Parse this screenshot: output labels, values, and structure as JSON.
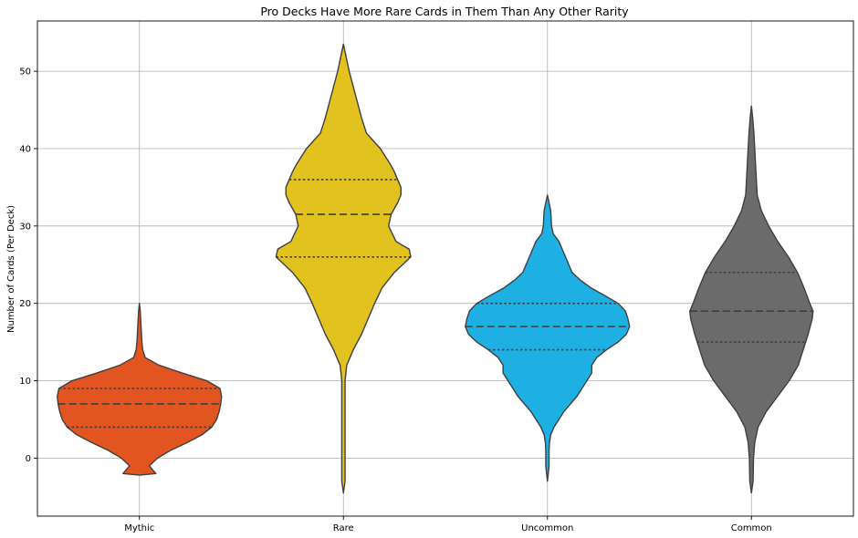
{
  "chart_data": {
    "type": "violin",
    "title": "Pro Decks Have More Rare Cards in Them Than Any Other Rarity",
    "xlabel": "",
    "ylabel": "Number of Cards (Per Deck)",
    "ylim": [
      -7.5,
      56.5
    ],
    "yticks": [
      0,
      10,
      20,
      30,
      40,
      50
    ],
    "grid": true,
    "categories": [
      "Mythic",
      "Rare",
      "Uncommon",
      "Common"
    ],
    "colors": [
      "#e35520",
      "#e2c21f",
      "#1fb0e3",
      "#6b6b6b"
    ],
    "quartiles": [
      {
        "q1": 4,
        "median": 7,
        "q3": 9
      },
      {
        "q1": 26,
        "median": 31.5,
        "q3": 36
      },
      {
        "q1": 14,
        "median": 17,
        "q3": 20
      },
      {
        "q1": 15,
        "median": 19,
        "q3": 24
      }
    ],
    "density_profiles": [
      [
        [
          -2.2,
          0
        ],
        [
          -2,
          0.2
        ],
        [
          -1,
          0.12
        ],
        [
          0,
          0.22
        ],
        [
          1,
          0.38
        ],
        [
          2,
          0.58
        ],
        [
          3,
          0.76
        ],
        [
          4,
          0.88
        ],
        [
          5,
          0.94
        ],
        [
          6,
          0.97
        ],
        [
          7,
          0.99
        ],
        [
          8,
          1
        ],
        [
          9,
          0.98
        ],
        [
          10,
          0.82
        ],
        [
          11,
          0.52
        ],
        [
          12,
          0.24
        ],
        [
          13,
          0.07
        ],
        [
          14,
          0.04
        ],
        [
          15,
          0.03
        ],
        [
          16,
          0.025
        ],
        [
          17,
          0.02
        ],
        [
          18,
          0.015
        ],
        [
          19,
          0.01
        ],
        [
          20,
          0
        ]
      ],
      [
        [
          -4.5,
          0
        ],
        [
          -3,
          0.02
        ],
        [
          0,
          0.02
        ],
        [
          6,
          0.02
        ],
        [
          10,
          0.02
        ],
        [
          12,
          0.04
        ],
        [
          14,
          0.12
        ],
        [
          16,
          0.22
        ],
        [
          18,
          0.3
        ],
        [
          20,
          0.38
        ],
        [
          22,
          0.47
        ],
        [
          24,
          0.62
        ],
        [
          26,
          0.82
        ],
        [
          27,
          0.8
        ],
        [
          28,
          0.64
        ],
        [
          30,
          0.55
        ],
        [
          31.5,
          0.58
        ],
        [
          33,
          0.66
        ],
        [
          34,
          0.7
        ],
        [
          35,
          0.7
        ],
        [
          36,
          0.66
        ],
        [
          37,
          0.62
        ],
        [
          38,
          0.57
        ],
        [
          40,
          0.45
        ],
        [
          42,
          0.28
        ],
        [
          44,
          0.22
        ],
        [
          46,
          0.17
        ],
        [
          48,
          0.12
        ],
        [
          50,
          0.07
        ],
        [
          52,
          0.03
        ],
        [
          53.5,
          0
        ]
      ],
      [
        [
          -3,
          0
        ],
        [
          -1,
          0.02
        ],
        [
          0,
          0.02
        ],
        [
          1,
          0.02
        ],
        [
          2,
          0.025
        ],
        [
          3,
          0.04
        ],
        [
          4,
          0.08
        ],
        [
          6,
          0.2
        ],
        [
          8,
          0.36
        ],
        [
          10,
          0.48
        ],
        [
          11,
          0.54
        ],
        [
          12,
          0.54
        ],
        [
          13,
          0.6
        ],
        [
          14,
          0.72
        ],
        [
          15,
          0.86
        ],
        [
          16,
          0.96
        ],
        [
          17,
          1
        ],
        [
          18,
          0.98
        ],
        [
          19,
          0.95
        ],
        [
          20,
          0.86
        ],
        [
          21,
          0.7
        ],
        [
          22,
          0.53
        ],
        [
          23,
          0.4
        ],
        [
          24,
          0.3
        ],
        [
          26,
          0.22
        ],
        [
          28,
          0.14
        ],
        [
          29,
          0.07
        ],
        [
          30,
          0.05
        ],
        [
          32,
          0.04
        ],
        [
          34,
          0
        ]
      ],
      [
        [
          -4.5,
          0
        ],
        [
          -3,
          0.02
        ],
        [
          0,
          0.025
        ],
        [
          2,
          0.04
        ],
        [
          4,
          0.08
        ],
        [
          6,
          0.18
        ],
        [
          8,
          0.32
        ],
        [
          10,
          0.46
        ],
        [
          12,
          0.57
        ],
        [
          14,
          0.63
        ],
        [
          16,
          0.69
        ],
        [
          18,
          0.74
        ],
        [
          19,
          0.75
        ],
        [
          20,
          0.71
        ],
        [
          22,
          0.64
        ],
        [
          24,
          0.56
        ],
        [
          26,
          0.45
        ],
        [
          28,
          0.32
        ],
        [
          30,
          0.21
        ],
        [
          32,
          0.12
        ],
        [
          34,
          0.07
        ],
        [
          36,
          0.06
        ],
        [
          38,
          0.05
        ],
        [
          40,
          0.04
        ],
        [
          42,
          0.03
        ],
        [
          44,
          0.015
        ],
        [
          45.5,
          0
        ]
      ]
    ]
  }
}
